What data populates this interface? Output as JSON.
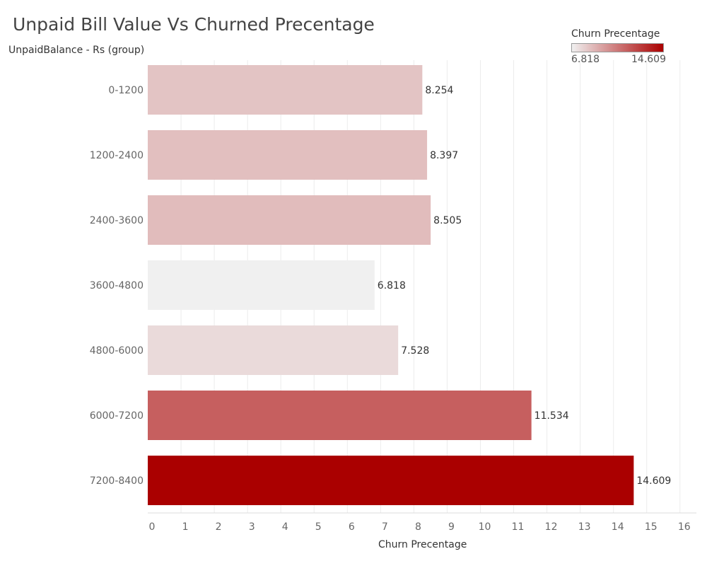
{
  "title": "Unpaid Bill Value Vs Churned Precentage",
  "chart_data": {
    "type": "bar",
    "orientation": "horizontal",
    "title": "Unpaid Bill Value Vs Churned Precentage",
    "ylabel": "UnpaidBalance - Rs (group)",
    "xlabel": "Churn Precentage",
    "categories": [
      "0-1200",
      "1200-2400",
      "2400-3600",
      "3600-4800",
      "4800-6000",
      "6000-7200",
      "7200-8400"
    ],
    "values": [
      8.254,
      8.397,
      8.505,
      6.818,
      7.528,
      11.534,
      14.609
    ],
    "value_labels": [
      "8.254",
      "8.397",
      "8.505",
      "6.818",
      "7.528",
      "11.534",
      "14.609"
    ],
    "xlim": [
      0,
      16
    ],
    "xticks": [
      0,
      1,
      2,
      3,
      4,
      5,
      6,
      7,
      8,
      9,
      10,
      11,
      12,
      13,
      14,
      15,
      16
    ],
    "grid": true,
    "legend": {
      "title": "Churn Precentage",
      "min_label": "6.818",
      "max_label": "14.609",
      "min": 6.818,
      "max": 14.609,
      "color_low": "#f0f0f0",
      "color_high": "#aa0000",
      "placement": "top-right"
    }
  }
}
